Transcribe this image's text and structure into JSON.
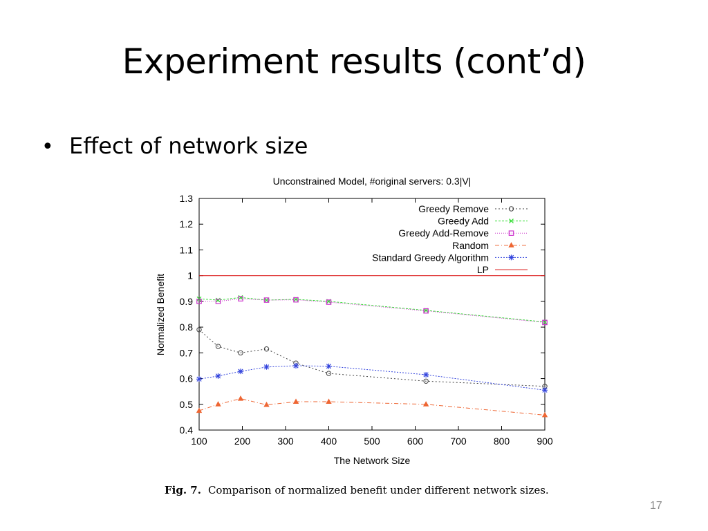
{
  "slide": {
    "title": "Experiment results (cont’d)",
    "bullet": "Effect of network size",
    "caption_label": "Fig. 7.",
    "caption_text": "Comparison of normalized benefit under different network sizes.",
    "slide_number": "17"
  },
  "chart_data": {
    "type": "line",
    "title": "Unconstrained Model, #original servers: 0.3|V|",
    "xlabel": "The Network Size",
    "ylabel": "Normalized Benefit",
    "xlim": [
      100,
      900
    ],
    "ylim": [
      0.4,
      1.3
    ],
    "x_ticks": [
      100,
      200,
      300,
      400,
      500,
      600,
      700,
      800,
      900
    ],
    "y_ticks": [
      0.4,
      0.5,
      0.6,
      0.7,
      0.8,
      0.9,
      1.0,
      1.1,
      1.2,
      1.3
    ],
    "y_tick_labels": [
      "0.4",
      "0.5",
      "0.6",
      "0.7",
      "0.8",
      "0.9",
      "1",
      "1.1",
      "1.2",
      "1.3"
    ],
    "legend_position": "top-right",
    "series": [
      {
        "name": "Greedy Remove",
        "color": "#404040",
        "dash": "2,3",
        "marker": "circle",
        "points": [
          [
            100,
            0.79
          ],
          [
            144,
            0.725
          ],
          [
            196,
            0.7
          ],
          [
            256,
            0.715
          ],
          [
            324,
            0.66
          ],
          [
            400,
            0.62
          ],
          [
            625,
            0.59
          ],
          [
            900,
            0.57
          ]
        ]
      },
      {
        "name": "Greedy Add",
        "color": "#33dd33",
        "dash": "3,2",
        "marker": "x",
        "points": [
          [
            100,
            0.91
          ],
          [
            144,
            0.905
          ],
          [
            196,
            0.915
          ],
          [
            256,
            0.905
          ],
          [
            324,
            0.908
          ],
          [
            400,
            0.9
          ],
          [
            625,
            0.865
          ],
          [
            900,
            0.82
          ]
        ]
      },
      {
        "name": "Greedy Add-Remove",
        "color": "#cc33cc",
        "dash": "1,2",
        "marker": "square",
        "points": [
          [
            100,
            0.9
          ],
          [
            144,
            0.9
          ],
          [
            196,
            0.91
          ],
          [
            256,
            0.905
          ],
          [
            324,
            0.906
          ],
          [
            400,
            0.897
          ],
          [
            625,
            0.863
          ],
          [
            900,
            0.818
          ]
        ]
      },
      {
        "name": "Random",
        "color": "#ee6633",
        "dash": "6,3,1,3",
        "marker": "triangle",
        "points": [
          [
            100,
            0.475
          ],
          [
            144,
            0.5
          ],
          [
            196,
            0.522
          ],
          [
            256,
            0.498
          ],
          [
            324,
            0.51
          ],
          [
            400,
            0.51
          ],
          [
            625,
            0.5
          ],
          [
            900,
            0.458
          ]
        ]
      },
      {
        "name": "Standard Greedy Algorithm",
        "color": "#3344dd",
        "dash": "2,2",
        "marker": "star",
        "points": [
          [
            100,
            0.598
          ],
          [
            144,
            0.61
          ],
          [
            196,
            0.628
          ],
          [
            256,
            0.645
          ],
          [
            324,
            0.65
          ],
          [
            400,
            0.648
          ],
          [
            625,
            0.615
          ],
          [
            900,
            0.555
          ]
        ]
      },
      {
        "name": "LP",
        "color": "#dd2222",
        "dash": "",
        "marker": "none",
        "points": [
          [
            100,
            1.0
          ],
          [
            900,
            1.0
          ]
        ]
      }
    ]
  }
}
